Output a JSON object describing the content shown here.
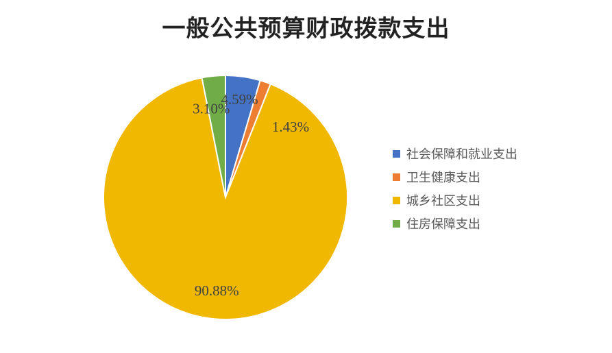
{
  "chart_data": {
    "type": "pie",
    "title": "一般公共预算财政拨款支出",
    "categories": [
      "社会保障和就业支出",
      "卫生健康支出",
      "城乡社区支出",
      "住房保障支出"
    ],
    "values": [
      4.59,
      1.43,
      90.88,
      3.1
    ],
    "labels": [
      "4.59%",
      "1.43%",
      "90.88%",
      "3.10%"
    ],
    "colors": [
      "#4472C4",
      "#ED7D31",
      "#F0B800",
      "#70AD47"
    ],
    "legend": {
      "placement": "right"
    }
  }
}
